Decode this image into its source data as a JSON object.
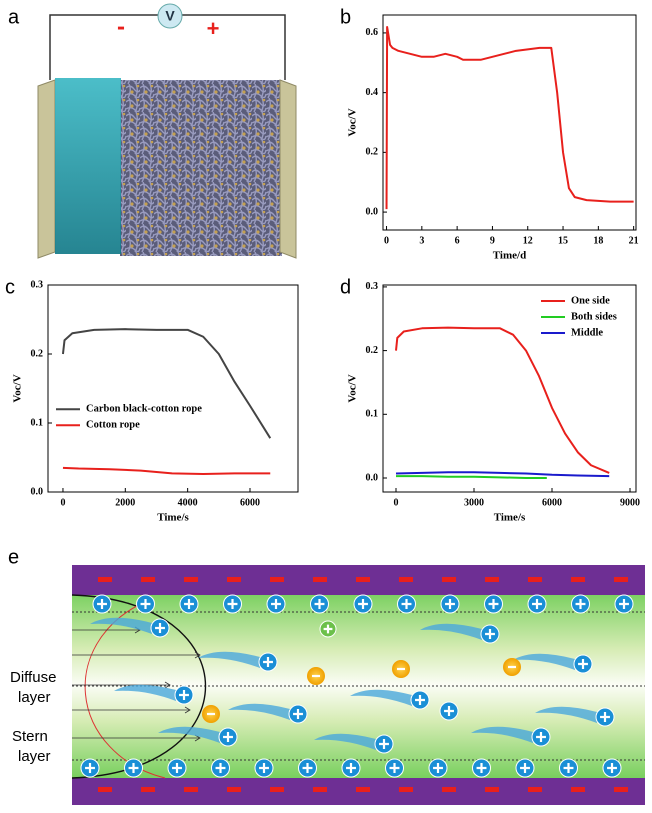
{
  "panels": {
    "a": {
      "label": "a",
      "meter": "V",
      "minus": "-",
      "plus": "+"
    },
    "e": {
      "label": "e",
      "diffuse": [
        "Diffuse",
        "layer"
      ],
      "stern": [
        "Stern",
        "layer"
      ]
    }
  },
  "chart_data": [
    {
      "type": "line",
      "panel_label": "b",
      "x_label": "Time/d",
      "y_label": "Voc/V",
      "color": "#e8201c",
      "x": [
        0,
        0.05,
        0.3,
        0.5,
        1,
        2,
        3,
        4,
        5,
        6,
        6.5,
        7,
        8,
        9,
        10,
        11,
        12,
        13,
        14,
        14.5,
        15,
        15.5,
        16,
        17,
        19,
        21
      ],
      "values": [
        0.01,
        0.62,
        0.56,
        0.55,
        0.54,
        0.53,
        0.52,
        0.52,
        0.53,
        0.52,
        0.51,
        0.51,
        0.51,
        0.52,
        0.53,
        0.54,
        0.545,
        0.55,
        0.55,
        0.4,
        0.2,
        0.08,
        0.05,
        0.04,
        0.035,
        0.035
      ],
      "xlim": [
        -0.3,
        21.2
      ],
      "ylim": [
        -0.06,
        0.66
      ],
      "xticks": [
        0,
        3,
        6,
        9,
        12,
        15,
        18,
        21
      ],
      "yticks": [
        {
          "value": 0,
          "label": "0.0"
        },
        0.2,
        0.4,
        0.6
      ]
    },
    {
      "type": "line",
      "panel_label": "c",
      "x_label": "Time/s",
      "y_label": "Voc/V",
      "legend": "center left",
      "series": [
        {
          "name": "Carbon black-cotton rope",
          "color": "#444444",
          "x": [
            0,
            50,
            300,
            1000,
            2000,
            3000,
            4000,
            4500,
            5000,
            5500,
            6000,
            6650
          ],
          "values": [
            0.2,
            0.22,
            0.23,
            0.235,
            0.236,
            0.235,
            0.235,
            0.225,
            0.2,
            0.16,
            0.125,
            0.078
          ]
        },
        {
          "name": "Cotton rope",
          "color": "#e8201c",
          "x": [
            0,
            500,
            1500,
            2500,
            3500,
            4500,
            5500,
            6650
          ],
          "values": [
            0.035,
            0.034,
            0.033,
            0.031,
            0.027,
            0.026,
            0.027,
            0.027
          ]
        }
      ],
      "xlim": [
        -480,
        7540
      ],
      "ylim": [
        0,
        0.3
      ],
      "xticks": [
        0,
        2000,
        4000,
        6000
      ],
      "yticks": [
        {
          "value": 0,
          "label": "0.0"
        },
        0.1,
        0.2,
        0.3
      ]
    },
    {
      "type": "line",
      "panel_label": "d",
      "x_label": "Time/s",
      "y_label": "Voc/V",
      "legend": "upper right",
      "series": [
        {
          "name": "One side",
          "color": "#e8201c",
          "x": [
            0,
            50,
            300,
            1000,
            2000,
            3000,
            4000,
            4500,
            5000,
            5500,
            6000,
            6500,
            7000,
            7500,
            8200
          ],
          "values": [
            0.2,
            0.22,
            0.23,
            0.235,
            0.236,
            0.235,
            0.235,
            0.225,
            0.2,
            0.16,
            0.11,
            0.07,
            0.04,
            0.02,
            0.008
          ]
        },
        {
          "name": "Both sides",
          "color": "#22cc22",
          "x": [
            0,
            1000,
            2000,
            3000,
            4000,
            5000,
            5800
          ],
          "values": [
            0.003,
            0.003,
            0.002,
            0.002,
            0.001,
            0.0,
            0.0
          ]
        },
        {
          "name": "Middle",
          "color": "#1a1acc",
          "x": [
            0,
            1000,
            2000,
            3000,
            4000,
            5000,
            6000,
            7000,
            8200
          ],
          "values": [
            0.007,
            0.008,
            0.009,
            0.009,
            0.008,
            0.007,
            0.005,
            0.004,
            0.003
          ]
        }
      ],
      "xlim": [
        -500,
        9230
      ],
      "ylim": [
        -0.022,
        0.303
      ],
      "xticks": [
        0,
        3000,
        6000,
        9000
      ],
      "yticks": [
        {
          "value": 0,
          "label": "0.0"
        },
        0.1,
        0.2,
        0.3
      ]
    }
  ]
}
